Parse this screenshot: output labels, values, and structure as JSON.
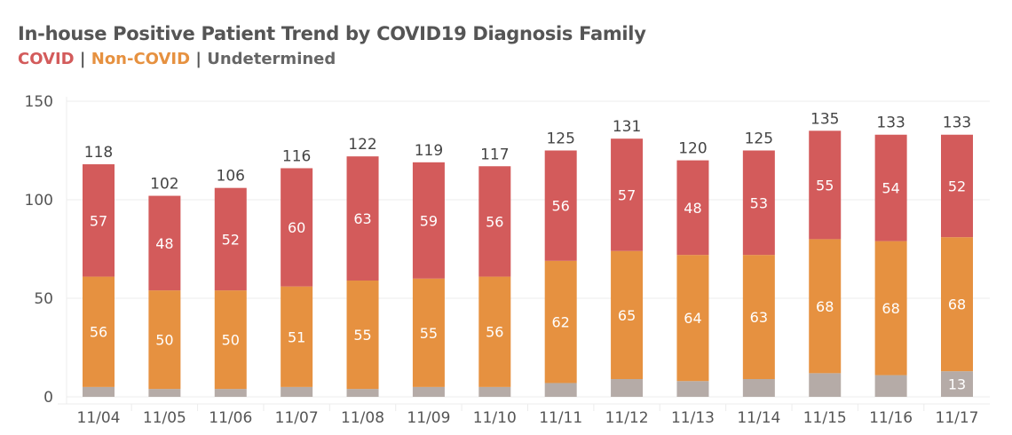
{
  "chart_data": {
    "type": "bar",
    "stacked": true,
    "title": "In-house Positive Patient Trend by COVID19 Diagnosis Family",
    "legend": [
      {
        "label": "COVID",
        "color": "#d35b5b"
      },
      {
        "label": "Non-COVID",
        "color": "#e69140"
      },
      {
        "label": "Undetermined",
        "color": "#b5aba7"
      }
    ],
    "separator": "|",
    "categories": [
      "11/04",
      "11/05",
      "11/06",
      "11/07",
      "11/08",
      "11/09",
      "11/10",
      "11/11",
      "11/12",
      "11/13",
      "11/14",
      "11/15",
      "11/16",
      "11/17"
    ],
    "series": [
      {
        "name": "Undetermined",
        "color": "#b5aba7",
        "values": [
          5,
          4,
          4,
          5,
          4,
          5,
          5,
          7,
          9,
          8,
          9,
          12,
          11,
          13
        ],
        "labeled": [
          false,
          false,
          false,
          false,
          false,
          false,
          false,
          false,
          false,
          false,
          false,
          false,
          false,
          true
        ]
      },
      {
        "name": "Non-COVID",
        "color": "#e69140",
        "values": [
          56,
          50,
          50,
          51,
          55,
          55,
          56,
          62,
          65,
          64,
          63,
          68,
          68,
          68
        ]
      },
      {
        "name": "COVID",
        "color": "#d35b5b",
        "values": [
          57,
          48,
          52,
          60,
          63,
          59,
          56,
          56,
          57,
          48,
          53,
          55,
          54,
          52
        ]
      }
    ],
    "totals": [
      118,
      102,
      106,
      116,
      122,
      119,
      117,
      125,
      131,
      120,
      125,
      135,
      133,
      133
    ],
    "ylim": [
      0,
      150
    ],
    "yticks": [
      0,
      50,
      100,
      150
    ],
    "grid": true
  }
}
